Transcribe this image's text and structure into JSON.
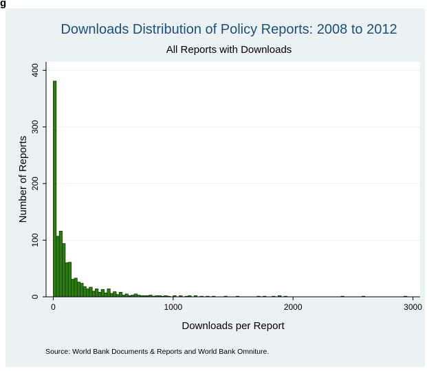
{
  "corner_label": "g",
  "source_note": "Source: World Bank Documents & Reports and World Bank Omniture.",
  "colors": {
    "bar_fill": "#2e7d0f",
    "bar_stroke": "#0c3a00",
    "panel_bg": "#eaf2f3",
    "plot_bg": "#ffffff",
    "grid": "#eaf2f3",
    "title": "#1f4e79"
  },
  "chart_data": {
    "type": "bar",
    "title": "Downloads Distribution of Policy Reports: 2008 to 2012",
    "subtitle": "All Reports with Downloads",
    "xlabel": "Downloads per Report",
    "ylabel": "Number of Reports",
    "xlim": [
      -60,
      3060
    ],
    "ylim": [
      0,
      415
    ],
    "xticks": [
      0,
      1000,
      2000,
      3000
    ],
    "yticks": [
      0,
      100,
      200,
      300,
      400
    ],
    "grid": true,
    "bin_width": 25,
    "bins": [
      {
        "x": 0,
        "y": 381
      },
      {
        "x": 25,
        "y": 107
      },
      {
        "x": 50,
        "y": 116
      },
      {
        "x": 75,
        "y": 94
      },
      {
        "x": 100,
        "y": 60
      },
      {
        "x": 125,
        "y": 61
      },
      {
        "x": 150,
        "y": 31
      },
      {
        "x": 175,
        "y": 33
      },
      {
        "x": 200,
        "y": 26
      },
      {
        "x": 225,
        "y": 24
      },
      {
        "x": 250,
        "y": 18
      },
      {
        "x": 275,
        "y": 14
      },
      {
        "x": 300,
        "y": 17
      },
      {
        "x": 325,
        "y": 10
      },
      {
        "x": 350,
        "y": 14
      },
      {
        "x": 375,
        "y": 8
      },
      {
        "x": 400,
        "y": 13
      },
      {
        "x": 425,
        "y": 7
      },
      {
        "x": 450,
        "y": 14
      },
      {
        "x": 475,
        "y": 6
      },
      {
        "x": 500,
        "y": 9
      },
      {
        "x": 525,
        "y": 4
      },
      {
        "x": 550,
        "y": 8
      },
      {
        "x": 575,
        "y": 3
      },
      {
        "x": 600,
        "y": 5
      },
      {
        "x": 625,
        "y": 2
      },
      {
        "x": 650,
        "y": 3
      },
      {
        "x": 675,
        "y": 5
      },
      {
        "x": 700,
        "y": 3
      },
      {
        "x": 725,
        "y": 2
      },
      {
        "x": 750,
        "y": 2
      },
      {
        "x": 775,
        "y": 2
      },
      {
        "x": 800,
        "y": 3
      },
      {
        "x": 825,
        "y": 1
      },
      {
        "x": 850,
        "y": 2
      },
      {
        "x": 875,
        "y": 2
      },
      {
        "x": 900,
        "y": 1
      },
      {
        "x": 925,
        "y": 2
      },
      {
        "x": 950,
        "y": 1
      },
      {
        "x": 1000,
        "y": 2
      },
      {
        "x": 1050,
        "y": 2
      },
      {
        "x": 1100,
        "y": 1
      },
      {
        "x": 1125,
        "y": 2
      },
      {
        "x": 1175,
        "y": 2
      },
      {
        "x": 1225,
        "y": 1
      },
      {
        "x": 1275,
        "y": 1
      },
      {
        "x": 1325,
        "y": 1
      },
      {
        "x": 1425,
        "y": 1
      },
      {
        "x": 1525,
        "y": 1
      },
      {
        "x": 1700,
        "y": 1
      },
      {
        "x": 1750,
        "y": 1
      },
      {
        "x": 1825,
        "y": 1
      },
      {
        "x": 1875,
        "y": 2
      },
      {
        "x": 1925,
        "y": 1
      },
      {
        "x": 2400,
        "y": 1
      },
      {
        "x": 2575,
        "y": 1
      },
      {
        "x": 2925,
        "y": 1
      }
    ]
  }
}
